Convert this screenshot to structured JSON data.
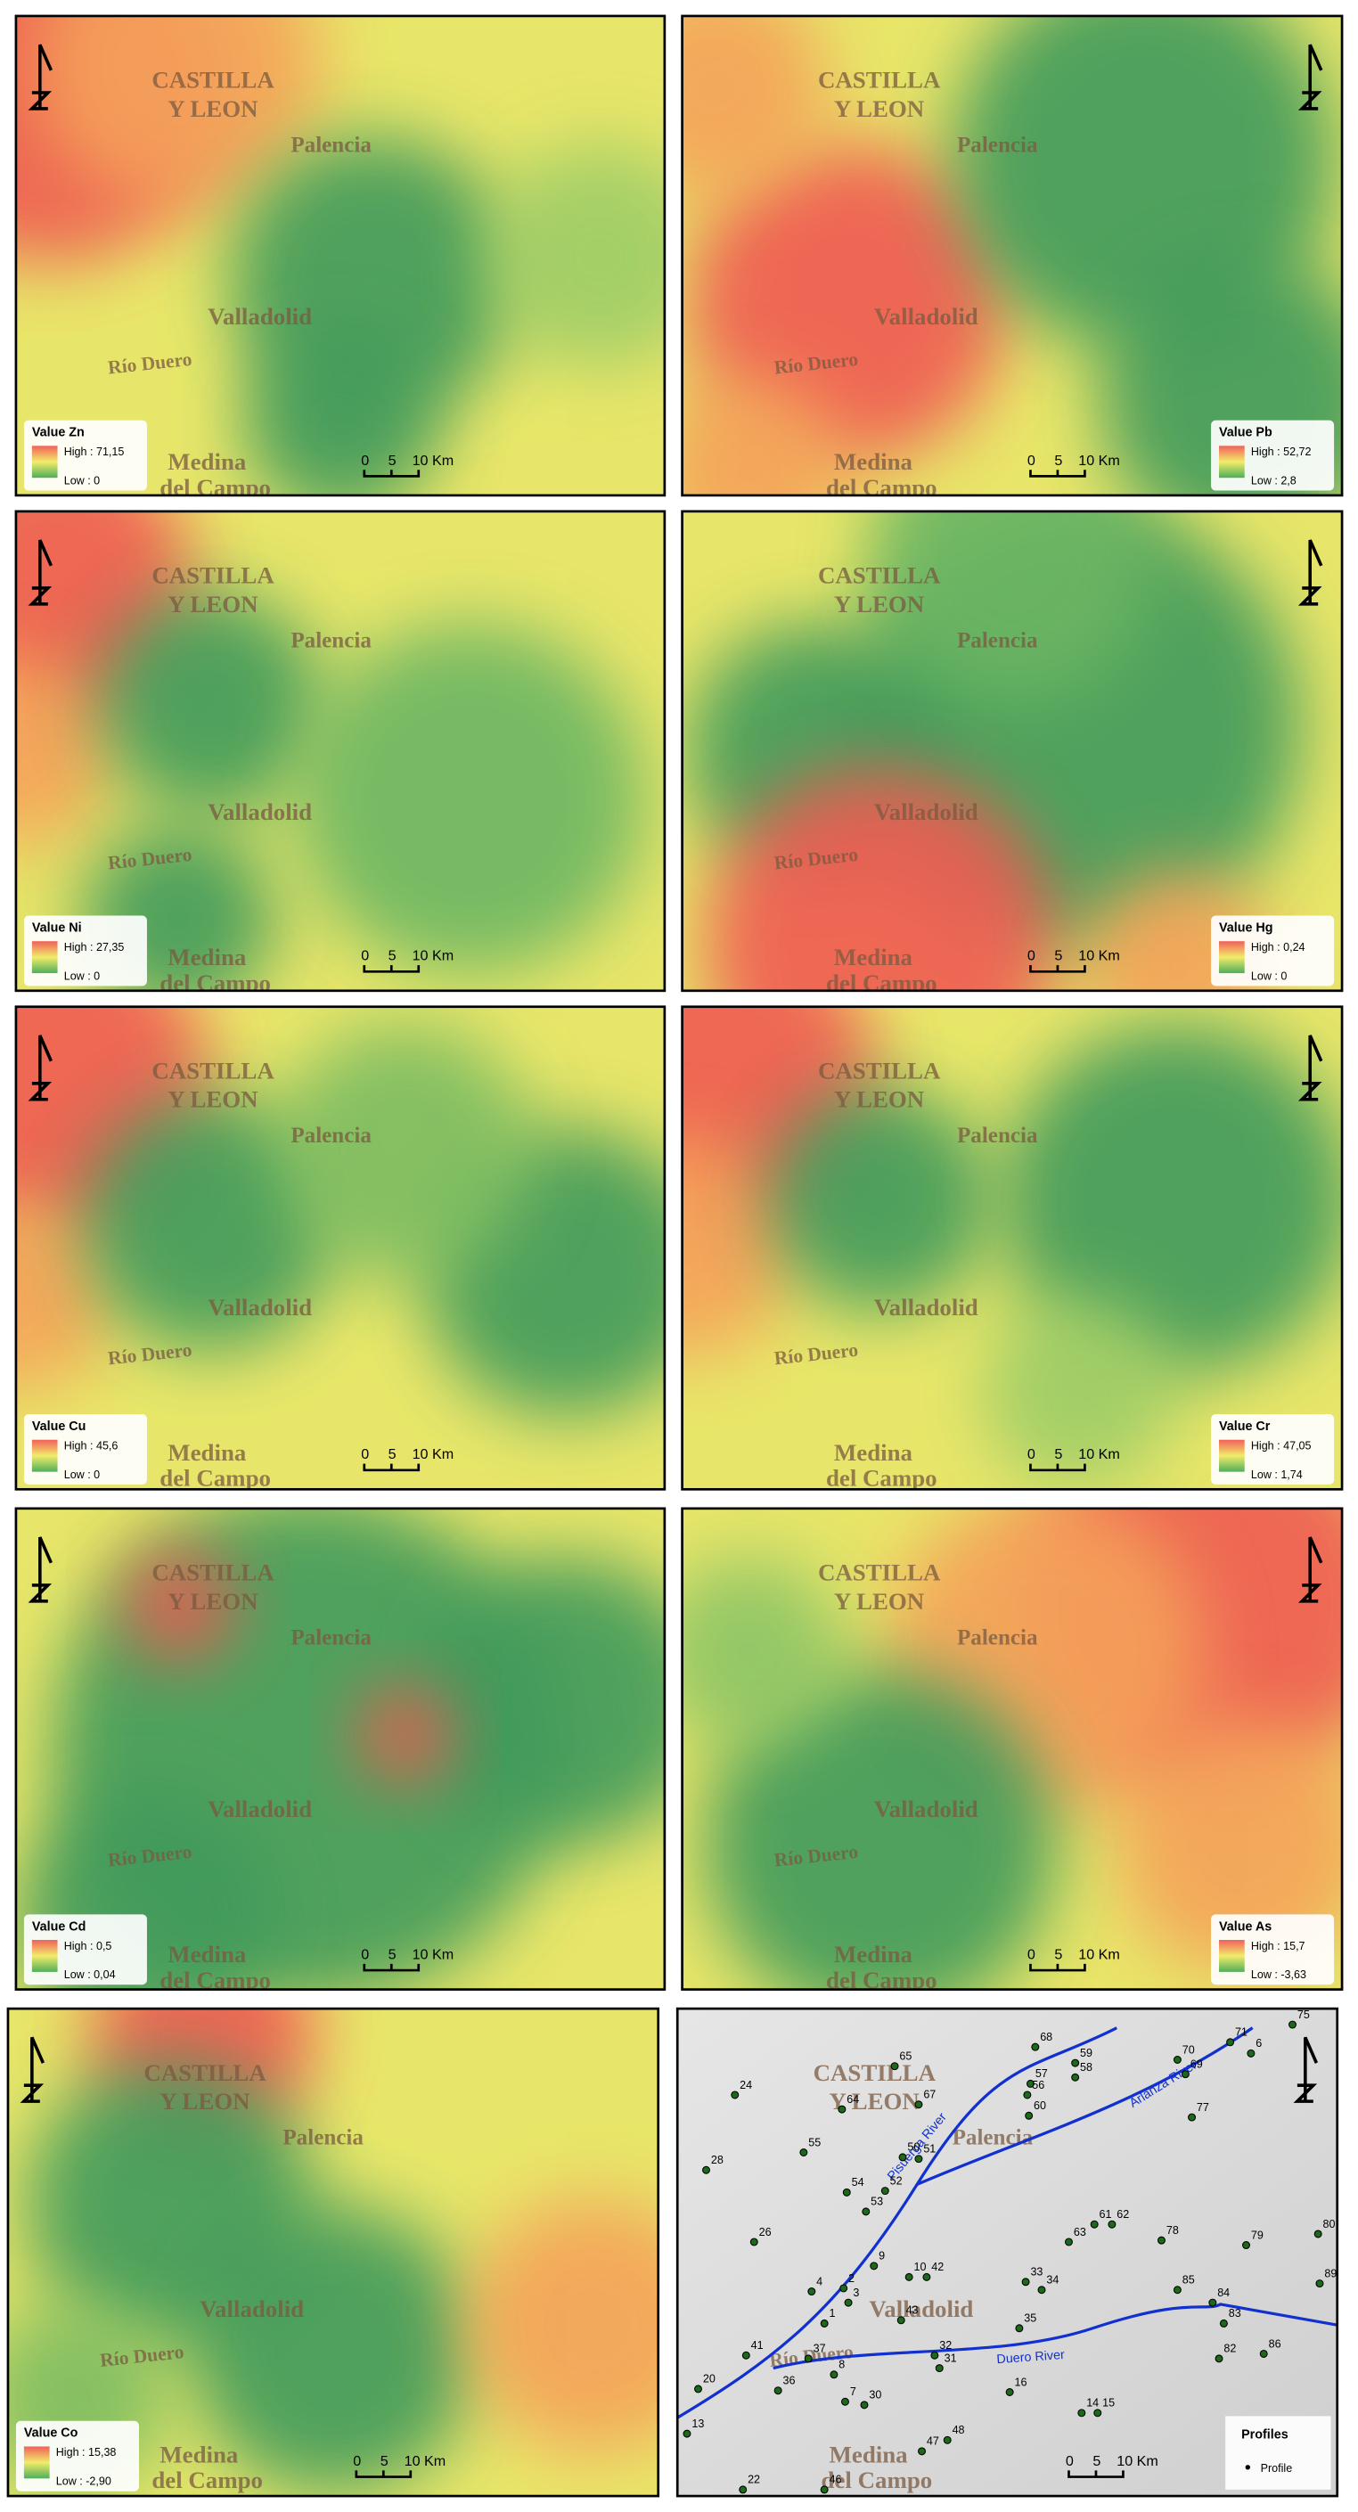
{
  "panels": [
    {
      "element": "Value Zn",
      "high": "High : 71,15",
      "low": "Low : 0"
    },
    {
      "element": "Value Pb",
      "high": "High : 52,72",
      "low": "Low : 2,8"
    },
    {
      "element": "Value Ni",
      "high": "High : 27,35",
      "low": "Low : 0"
    },
    {
      "element": "Value Hg",
      "high": "High : 0,24",
      "low": "Low : 0"
    },
    {
      "element": "Value Cu",
      "high": "High : 45,6",
      "low": "Low : 0"
    },
    {
      "element": "Value Cr",
      "high": "High : 47,05",
      "low": "Low : 1,74"
    },
    {
      "element": "Value Cd",
      "high": "High : 0,5",
      "low": "Low : 0,04"
    },
    {
      "element": "Value As",
      "high": "High : 15,7",
      "low": "Low : -3,63"
    },
    {
      "element": "Value Co",
      "high": "High : 15,38",
      "low": "Low : -2,90"
    }
  ],
  "map_labels": {
    "region_line_1": "CASTILLA",
    "region_line_2": "Y LEON",
    "city_1": "Palencia",
    "city_2": "Valladolid",
    "city_3_line_1": "Medina",
    "city_3_line_2": "del Campo",
    "river": "Río Duero"
  },
  "scale_bar": {
    "zero": "0",
    "five": "5",
    "ten": "10 Km"
  },
  "profiles": {
    "legend_title": "Profiles",
    "legend_item": "Profile",
    "rivers": [
      "Pisuerga River",
      "Arlanza River",
      "Duero River"
    ],
    "points": [
      "75",
      "71",
      "6",
      "70",
      "69",
      "68",
      "59",
      "58",
      "65",
      "67",
      "64",
      "57",
      "56",
      "60",
      "77",
      "24",
      "55",
      "50",
      "51",
      "28",
      "54",
      "52",
      "53",
      "61",
      "62",
      "78",
      "79",
      "80",
      "63",
      "26",
      "9",
      "10",
      "42",
      "89",
      "85",
      "84",
      "33",
      "34",
      "4",
      "2",
      "3",
      "43",
      "83",
      "35",
      "1",
      "37",
      "41",
      "32",
      "31",
      "8",
      "82",
      "86",
      "20",
      "36",
      "16",
      "7",
      "30",
      "14",
      "15",
      "13",
      "48",
      "47",
      "22",
      "46"
    ]
  }
}
